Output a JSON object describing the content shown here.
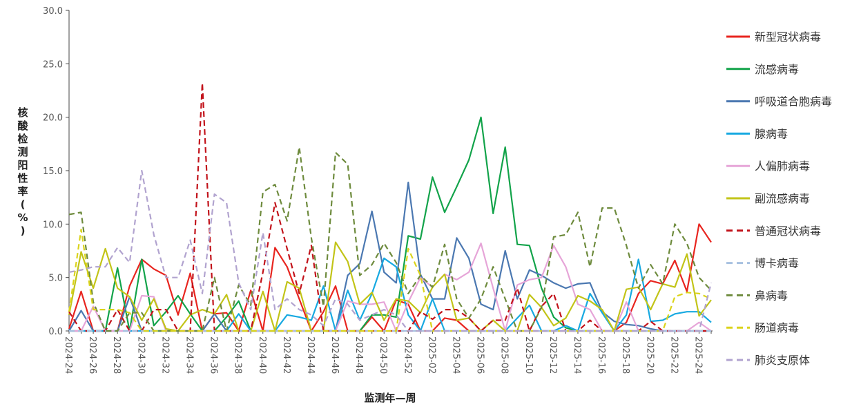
{
  "chart_data": {
    "type": "line",
    "xlabel": "监测年—周",
    "ylabel": "核酸检测阳性率(%)",
    "ylim": [
      0,
      30
    ],
    "yticks": [
      "0.0",
      "5.0",
      "10.0",
      "15.0",
      "20.0",
      "25.0",
      "30.0"
    ],
    "legend_position": "right",
    "grid": false,
    "x": [
      "2024-24",
      "2024-25",
      "2024-26",
      "2024-27",
      "2024-28",
      "2024-29",
      "2024-30",
      "2024-31",
      "2024-32",
      "2024-33",
      "2024-34",
      "2024-35",
      "2024-36",
      "2024-37",
      "2024-38",
      "2024-39",
      "2024-40",
      "2024-41",
      "2024-42",
      "2024-43",
      "2024-44",
      "2024-45",
      "2024-46",
      "2024-47",
      "2024-48",
      "2024-49",
      "2024-50",
      "2024-51",
      "2024-52",
      "2025-01",
      "2025-02",
      "2025-03",
      "2025-04",
      "2025-05",
      "2025-06",
      "2025-07",
      "2025-08",
      "2025-09",
      "2025-10",
      "2025-11",
      "2025-12",
      "2025-13",
      "2025-14",
      "2025-15",
      "2025-16",
      "2025-17",
      "2025-18",
      "2025-19",
      "2025-20",
      "2025-21",
      "2025-22",
      "2025-23",
      "2025-24",
      "2025-25"
    ],
    "xticks": [
      "2024-24",
      "2024-26",
      "2024-28",
      "2024-30",
      "2024-32",
      "2024-34",
      "2024-36",
      "2024-38",
      "2024-40",
      "2024-42",
      "2024-44",
      "2024-46",
      "2024-48",
      "2024-50",
      "2024-52",
      "2025-02",
      "2025-04",
      "2025-06",
      "2025-08",
      "2025-10",
      "2025-12",
      "2025-14",
      "2025-16",
      "2025-18",
      "2025-20",
      "2025-22",
      "2025-24"
    ],
    "series": [
      {
        "name": "新型冠状病毒",
        "color": "#e8251f",
        "dash": false,
        "values": [
          0.2,
          3.7,
          0.0,
          0.0,
          0.0,
          4.2,
          6.7,
          5.8,
          5.2,
          1.5,
          5.4,
          0.0,
          1.6,
          1.7,
          0.0,
          3.8,
          0.0,
          7.8,
          6.0,
          3.0,
          0.0,
          1.8,
          4.2,
          0.0,
          0.0,
          1.3,
          0.0,
          2.9,
          2.5,
          0.0,
          0.0,
          1.2,
          1.0,
          0.0,
          0.0,
          0.0,
          0.0,
          0.0,
          0.0,
          0.0,
          0.0,
          0.0,
          0.0,
          0.0,
          0.0,
          0.0,
          0.8,
          3.5,
          4.7,
          4.4,
          6.6,
          3.7,
          10.0,
          8.3
        ]
      },
      {
        "name": "流感病毒",
        "color": "#12a34a",
        "dash": false,
        "values": [
          0.0,
          0.0,
          0.0,
          0.0,
          5.9,
          0.0,
          6.7,
          0.5,
          1.8,
          3.3,
          1.6,
          0.0,
          0.0,
          1.3,
          2.8,
          0.0,
          0.0,
          0.0,
          0.0,
          0.0,
          0.0,
          0.0,
          0.0,
          0.0,
          0.0,
          1.5,
          1.5,
          1.3,
          8.9,
          8.6,
          14.4,
          11.1,
          13.5,
          16.0,
          20.0,
          11.0,
          17.2,
          8.1,
          8.0,
          4.0,
          1.3,
          0.3,
          0.0,
          0.0,
          0.0,
          0.0,
          0.0,
          0.0,
          0.0,
          0.0,
          0.0,
          0.0,
          0.0,
          0.0
        ]
      },
      {
        "name": "呼吸道合胞病毒",
        "color": "#4b78b1",
        "dash": false,
        "values": [
          0.0,
          1.9,
          0.0,
          0.0,
          0.0,
          3.2,
          0.0,
          0.0,
          0.0,
          0.0,
          0.0,
          0.0,
          1.6,
          0.0,
          0.0,
          0.0,
          0.0,
          0.0,
          0.0,
          0.0,
          0.0,
          0.0,
          0.0,
          5.2,
          6.3,
          11.2,
          5.5,
          4.5,
          13.9,
          5.3,
          3.0,
          3.0,
          8.7,
          6.8,
          2.5,
          2.0,
          7.5,
          3.0,
          5.7,
          5.2,
          4.5,
          4.0,
          4.4,
          4.5,
          1.8,
          0.9,
          0.6,
          0.5,
          0.2,
          0.0,
          0.0,
          0.0,
          0.0,
          0.0
        ]
      },
      {
        "name": "腺病毒",
        "color": "#17a9e1",
        "dash": false,
        "values": [
          0.0,
          0.0,
          0.0,
          0.0,
          0.0,
          0.0,
          0.0,
          0.0,
          0.0,
          0.0,
          0.0,
          0.0,
          0.0,
          0.0,
          1.6,
          0.0,
          0.0,
          0.0,
          1.5,
          1.3,
          1.0,
          4.2,
          0.0,
          3.8,
          1.0,
          3.5,
          6.8,
          6.0,
          1.5,
          0.0,
          3.0,
          0.0,
          0.0,
          0.0,
          0.0,
          0.0,
          0.0,
          1.2,
          2.4,
          0.0,
          0.0,
          0.5,
          0.0,
          3.5,
          1.7,
          0.0,
          1.5,
          6.7,
          0.9,
          1.0,
          1.6,
          1.8,
          1.8,
          0.8
        ]
      },
      {
        "name": "人偏肺病毒",
        "color": "#e6a5d8",
        "dash": false,
        "values": [
          0.0,
          0.0,
          2.3,
          0.0,
          0.0,
          0.0,
          3.3,
          3.2,
          0.0,
          0.0,
          0.0,
          0.0,
          0.0,
          0.0,
          0.0,
          0.0,
          0.0,
          0.0,
          0.0,
          0.0,
          0.0,
          0.0,
          0.0,
          2.8,
          2.5,
          2.5,
          2.7,
          0.0,
          2.7,
          5.0,
          4.1,
          5.3,
          4.8,
          5.5,
          8.2,
          4.0,
          0.0,
          4.3,
          4.8,
          5.0,
          8.0,
          6.0,
          2.5,
          2.0,
          0.0,
          0.0,
          2.7,
          0.0,
          0.0,
          0.0,
          0.0,
          0.0,
          0.8,
          0.0
        ]
      },
      {
        "name": "副流感病毒",
        "color": "#c2c418",
        "dash": false,
        "values": [
          1.5,
          7.4,
          4.0,
          7.7,
          4.0,
          3.2,
          1.0,
          3.0,
          0.2,
          0.0,
          1.5,
          2.0,
          1.6,
          3.4,
          0.0,
          0.0,
          3.7,
          0.0,
          4.6,
          4.0,
          0.0,
          0.0,
          8.3,
          6.5,
          2.5,
          3.6,
          1.0,
          3.0,
          2.8,
          1.7,
          4.1,
          5.3,
          1.0,
          1.2,
          0.0,
          1.0,
          0.0,
          0.0,
          3.4,
          2.2,
          0.5,
          1.2,
          3.3,
          2.8,
          2.0,
          0.0,
          3.9,
          4.1,
          2.0,
          4.4,
          4.1,
          7.2,
          1.4,
          2.9
        ]
      },
      {
        "name": "普通冠状病毒",
        "color": "#c2131b",
        "dash": true,
        "values": [
          1.8,
          0.0,
          0.0,
          0.0,
          2.0,
          0.0,
          0.0,
          2.0,
          2.0,
          0.0,
          0.0,
          23.2,
          0.0,
          0.0,
          0.0,
          0.0,
          5.5,
          12.0,
          7.7,
          3.5,
          8.0,
          0.0,
          0.0,
          0.0,
          0.0,
          0.0,
          0.0,
          0.0,
          0.0,
          1.8,
          1.1,
          2.0,
          2.0,
          1.2,
          0.0,
          1.0,
          1.0,
          4.0,
          0.0,
          2.3,
          3.5,
          0.0,
          0.0,
          1.0,
          0.0,
          0.0,
          0.0,
          0.0,
          0.9,
          0.0,
          0.0,
          0.0,
          0.0,
          0.0
        ]
      },
      {
        "name": "博卡病毒",
        "color": "#a7c1e0",
        "dash": true,
        "values": [
          0.0,
          0.0,
          0.0,
          0.0,
          0.0,
          0.0,
          0.0,
          0.0,
          0.0,
          0.0,
          0.0,
          0.0,
          0.0,
          0.0,
          0.0,
          0.0,
          0.0,
          0.0,
          0.0,
          0.0,
          0.0,
          0.0,
          0.0,
          0.0,
          0.0,
          0.0,
          0.0,
          0.0,
          0.0,
          0.0,
          0.0,
          0.0,
          0.0,
          0.0,
          0.0,
          0.0,
          0.0,
          0.0,
          0.0,
          0.0,
          0.0,
          0.0,
          0.0,
          0.0,
          0.0,
          0.0,
          0.0,
          0.0,
          0.0,
          0.0,
          0.0,
          0.0,
          0.0,
          0.0
        ]
      },
      {
        "name": "鼻病毒",
        "color": "#6e8b3d",
        "dash": true,
        "values": [
          10.9,
          11.1,
          2.7,
          0.0,
          0.0,
          1.7,
          1.7,
          0.0,
          0.0,
          0.0,
          0.0,
          0.0,
          5.0,
          0.0,
          4.3,
          2.4,
          13.0,
          13.7,
          10.3,
          17.2,
          8.7,
          2.3,
          16.7,
          15.6,
          5.2,
          6.2,
          8.2,
          6.4,
          3.5,
          5.2,
          4.1,
          8.1,
          3.0,
          1.2,
          3.0,
          6.0,
          3.0,
          0.0,
          0.0,
          2.2,
          8.8,
          9.0,
          11.1,
          6.0,
          11.5,
          11.5,
          8.0,
          4.0,
          6.2,
          4.4,
          10.0,
          8.2,
          5.0,
          3.8
        ]
      },
      {
        "name": "肠道病毒",
        "color": "#dbd41c",
        "dash": true,
        "values": [
          1.8,
          9.5,
          2.0,
          2.0,
          2.0,
          1.7,
          0.0,
          0.0,
          0.0,
          0.0,
          0.0,
          0.0,
          0.0,
          0.0,
          0.0,
          0.0,
          0.0,
          0.0,
          0.0,
          0.0,
          0.0,
          0.0,
          0.0,
          0.0,
          0.0,
          0.0,
          0.0,
          0.0,
          7.7,
          5.2,
          0.0,
          0.0,
          0.0,
          0.0,
          0.0,
          0.0,
          0.0,
          0.0,
          0.0,
          0.0,
          0.0,
          0.0,
          0.0,
          0.0,
          0.0,
          0.0,
          0.0,
          0.0,
          0.0,
          0.0,
          3.2,
          3.6,
          3.5,
          3.0
        ]
      },
      {
        "name": "肺炎支原体",
        "color": "#b1a3cf",
        "dash": true,
        "values": [
          5.5,
          5.7,
          6.0,
          6.0,
          7.8,
          6.4,
          15.0,
          9.0,
          5.0,
          5.0,
          8.5,
          3.5,
          12.8,
          12.0,
          4.5,
          2.0,
          9.2,
          2.0,
          3.0,
          2.0,
          1.5,
          0.5,
          3.0,
          2.5,
          1.0,
          1.5,
          2.0,
          1.5,
          0.0,
          0.0,
          0.0,
          0.0,
          0.0,
          0.0,
          0.0,
          0.0,
          0.0,
          0.0,
          0.0,
          0.0,
          0.0,
          0.0,
          0.0,
          0.0,
          0.0,
          0.0,
          0.0,
          0.0,
          0.0,
          0.0,
          0.0,
          0.0,
          0.0,
          4.5
        ]
      }
    ]
  }
}
